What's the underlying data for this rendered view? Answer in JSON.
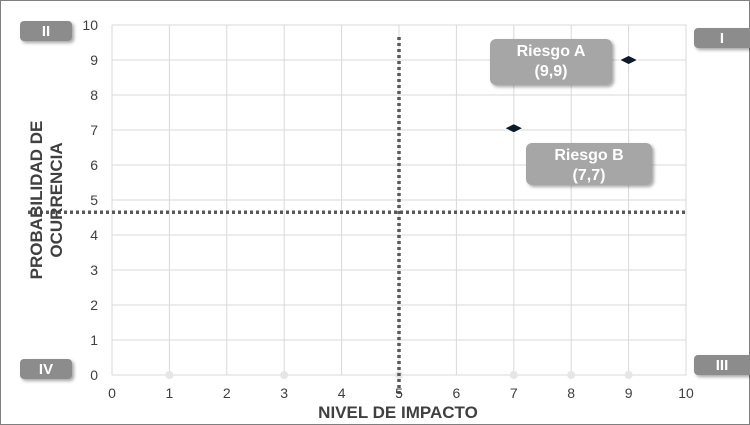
{
  "chart_data": {
    "type": "scatter",
    "xlabel": "NIVEL DE IMPACTO",
    "ylabel_lines": [
      "PROBABILIDAD DE",
      "OCURRENCIA"
    ],
    "xlim": [
      0,
      10
    ],
    "ylim": [
      0,
      10
    ],
    "x_ticks": [
      0,
      1,
      2,
      3,
      4,
      5,
      6,
      7,
      8,
      9,
      10
    ],
    "y_ticks": [
      0,
      1,
      2,
      3,
      4,
      5,
      6,
      7,
      8,
      9,
      10
    ],
    "grid": true,
    "threshold_lines": {
      "x": 5,
      "y": 4.65
    },
    "points": [
      {
        "x": 9,
        "y": 9,
        "label_lines": [
          "Riesgo A",
          "(9,9)"
        ]
      },
      {
        "x": 7,
        "y": 7.05,
        "label_lines": [
          "Riesgo B",
          "(7,7)"
        ]
      }
    ],
    "faint_points_x": [
      1,
      3,
      5,
      7,
      8,
      9
    ],
    "quadrants": {
      "top_left": "II",
      "top_right": "I",
      "bottom_left": "IV",
      "bottom_right": "III"
    },
    "colors": {
      "grid": "#d9d9d9",
      "threshold": "#595959",
      "marker": "#0d1b2a",
      "label_box": "#a6a6a6",
      "quadrant_box": "#8c8c8c",
      "text": "#404040"
    }
  }
}
